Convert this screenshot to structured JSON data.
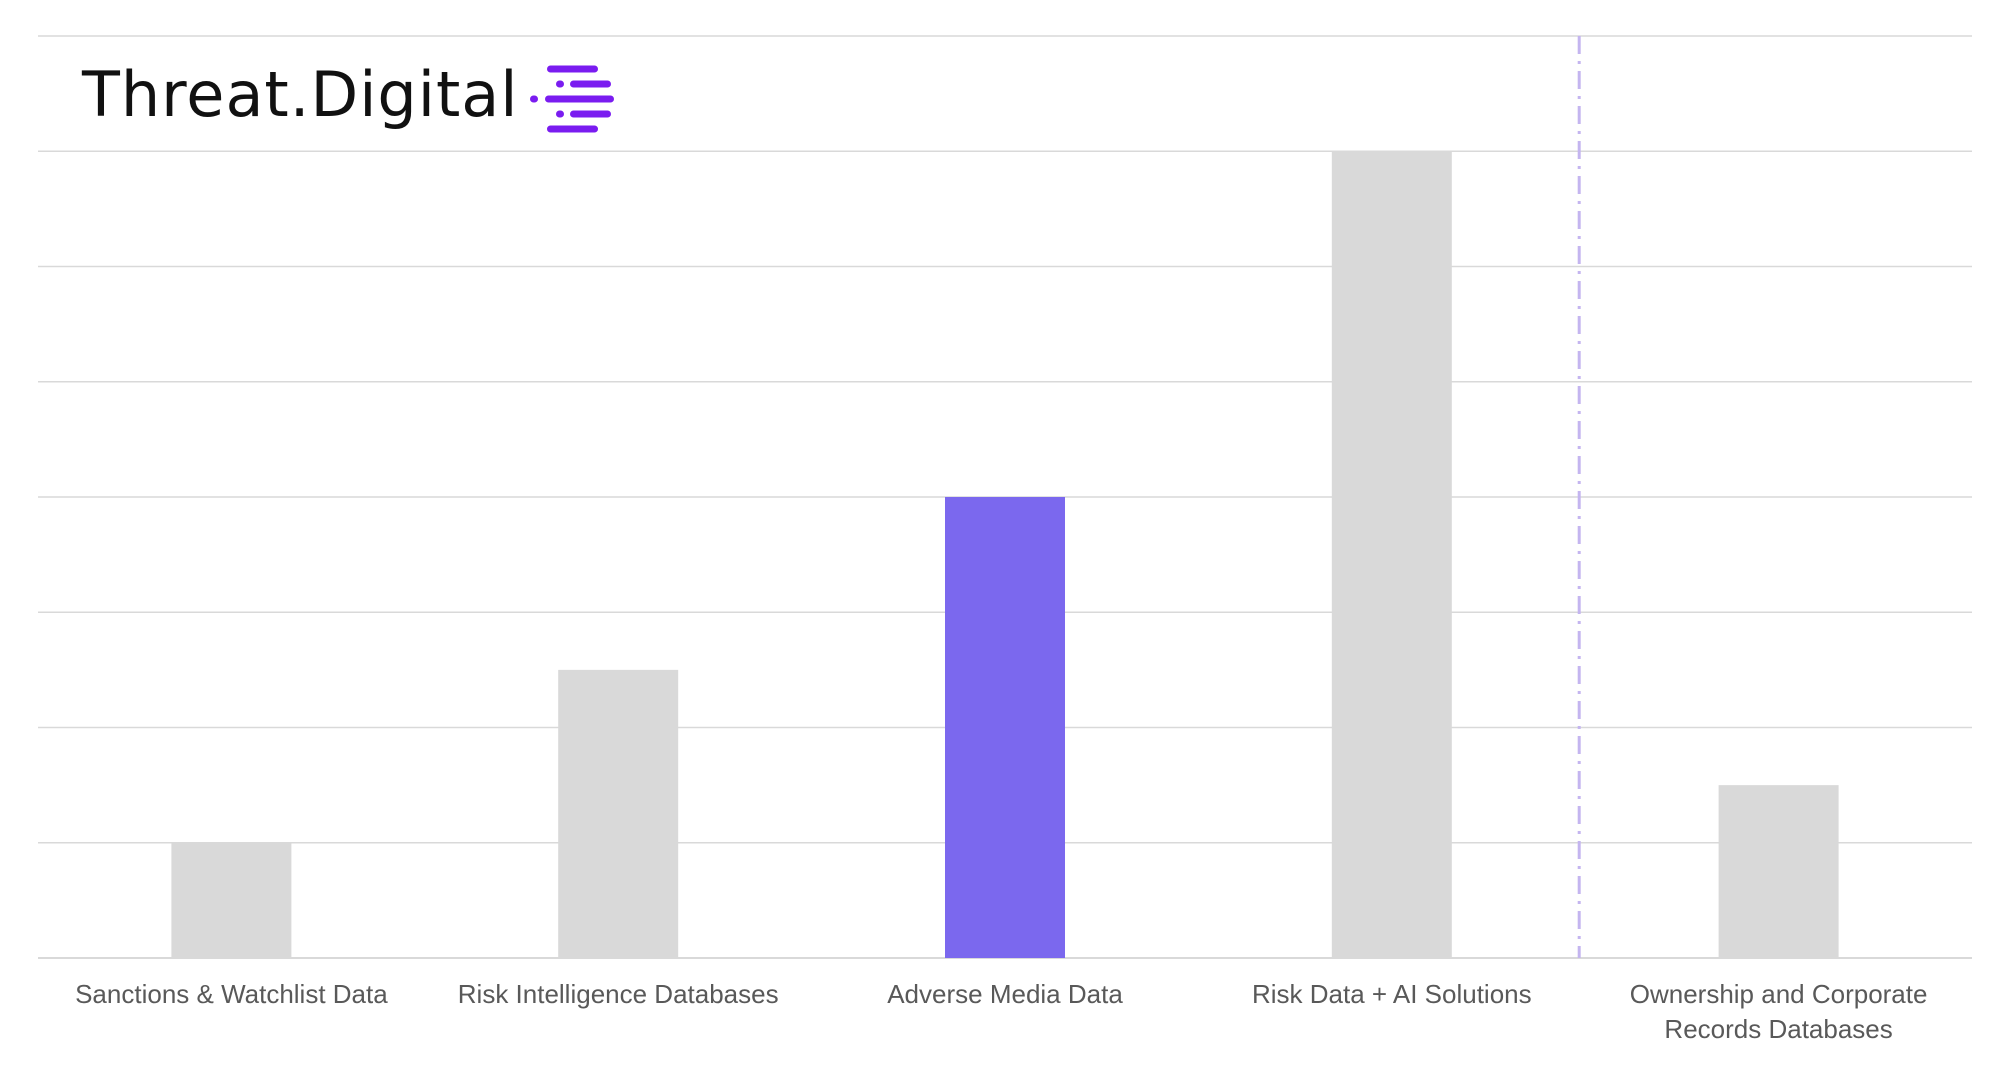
{
  "logo": {
    "text": "Threat.Digital",
    "mark_icon": "stacked-dashes-logo-icon",
    "mark_color": "#7a1cf0"
  },
  "colors": {
    "bar_default": "#d9d9d9",
    "bar_highlight": "#7b68ee",
    "grid": "#d9d9d9",
    "divider": "#c4b5f0",
    "tick_label": "#595959"
  },
  "chart_data": {
    "type": "bar",
    "title": "",
    "xlabel": "",
    "ylabel": "",
    "categories": [
      [
        "Sanctions & Watchlist Data"
      ],
      [
        "Risk Intelligence Databases"
      ],
      [
        "Adverse Media Data"
      ],
      [
        "Risk Data + AI Solutions"
      ],
      [
        "Ownership and Corporate",
        "Records Databases"
      ]
    ],
    "values": [
      1,
      2.5,
      4,
      7,
      1.5
    ],
    "highlight_index": 2,
    "ylim": [
      0,
      8
    ],
    "y_tick_step": 1,
    "y_tick_labels_shown": false,
    "grid": true,
    "divider_after_index": 3,
    "divider_style": "dash-dot"
  }
}
